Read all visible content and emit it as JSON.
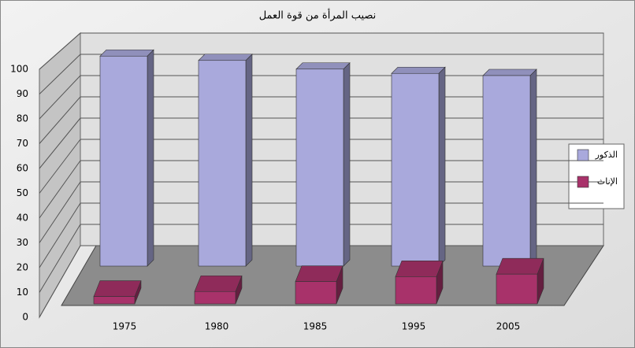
{
  "chart_data": {
    "type": "bar3d",
    "title": "نصيب المرأة من قوة العمل",
    "categories": [
      "1975",
      "1980",
      "1985",
      "1995",
      "2005"
    ],
    "series": [
      {
        "name": "الذكور",
        "color": "#a9a9dc",
        "values": [
          97,
          95,
          91,
          89,
          88
        ]
      },
      {
        "name": "الإناث",
        "color": "#a8326a",
        "values": [
          3,
          5,
          9,
          11,
          12
        ]
      }
    ],
    "ylim": [
      0,
      100
    ],
    "yticks": [
      0,
      10,
      20,
      30,
      40,
      50,
      60,
      70,
      80,
      90,
      100
    ],
    "grid": true,
    "legend": "right"
  }
}
